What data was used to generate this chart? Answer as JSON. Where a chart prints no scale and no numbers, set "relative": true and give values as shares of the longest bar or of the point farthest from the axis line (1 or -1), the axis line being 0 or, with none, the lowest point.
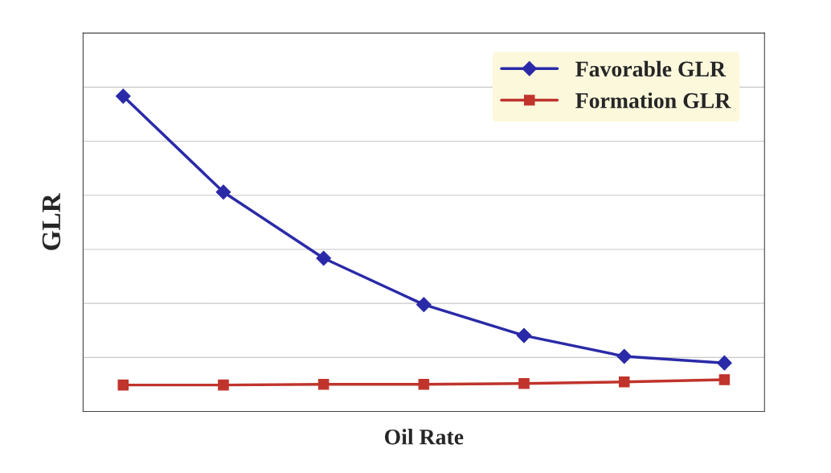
{
  "chart_data": {
    "type": "line",
    "xlabel": "Oil Rate",
    "ylabel": "GLR",
    "relative": true,
    "categories": [
      null,
      null,
      null,
      null,
      null,
      null,
      null
    ],
    "series": [
      {
        "name": "Favorable GLR",
        "color": "#2a2aa8",
        "marker": "diamond",
        "values": [
          1,
          0.696,
          0.486,
          0.339,
          0.241,
          0.175,
          0.154
        ]
      },
      {
        "name": "Formation GLR",
        "color": "#c0342c",
        "marker": "square",
        "values": [
          0.084,
          0.084,
          0.086,
          0.086,
          0.089,
          0.094,
          0.101
        ]
      }
    ],
    "grid": "y",
    "legend": "top right"
  }
}
